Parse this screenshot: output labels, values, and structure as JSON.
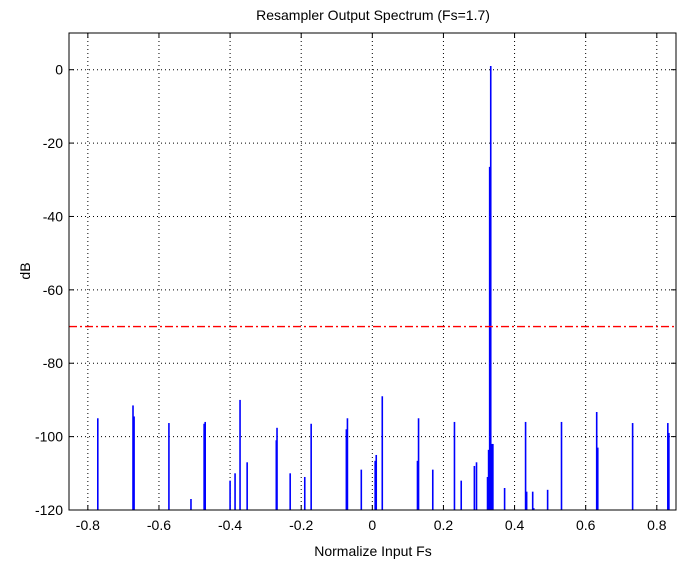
{
  "chart_data": {
    "type": "line",
    "style": "stem",
    "title": "Resampler Output Spectrum (Fs=1.7)",
    "xlabel": "Normalize Input Fs",
    "ylabel": "dB",
    "xlim": [
      -0.853,
      0.854
    ],
    "ylim": [
      -120,
      10
    ],
    "grid": true,
    "xticks": [
      -0.8,
      -0.6,
      -0.4,
      -0.2,
      0,
      0.2,
      0.4,
      0.6,
      0.8
    ],
    "xtick_labels": [
      "-0.8",
      "-0.6",
      "-0.4",
      "-0.2",
      "0",
      "0.2",
      "0.4",
      "0.6",
      "0.8"
    ],
    "yticks": [
      0,
      -20,
      -40,
      -60,
      -80,
      -100,
      -120
    ],
    "ytick_labels": [
      "0",
      "-20",
      "-40",
      "-60",
      "-80",
      "-100",
      "-120"
    ],
    "threshold": {
      "value": -70,
      "color": "#ff0000",
      "style": "dash-dot"
    },
    "series": [
      {
        "name": "spectrum",
        "color": "#0000ff",
        "x": [
          -0.772,
          -0.673,
          -0.67,
          -0.572,
          -0.51,
          -0.473,
          -0.47,
          -0.4,
          -0.386,
          -0.372,
          -0.352,
          -0.27,
          -0.268,
          -0.231,
          -0.19,
          -0.172,
          -0.073,
          -0.07,
          -0.031,
          0.008,
          0.011,
          0.028,
          0.127,
          0.13,
          0.17,
          0.231,
          0.25,
          0.287,
          0.293,
          0.324,
          0.327,
          0.33,
          0.333,
          0.336,
          0.339,
          0.372,
          0.431,
          0.434,
          0.451,
          0.454,
          0.493,
          0.532,
          0.631,
          0.634,
          0.732,
          0.831,
          0.834
        ],
        "y": [
          -95,
          -91.5,
          -94.5,
          -96.3,
          -117,
          -96.5,
          -96,
          -112,
          -110,
          -90,
          -107,
          -101,
          -97.6,
          -110,
          -111,
          -96.5,
          -98,
          -95,
          -109,
          -106.6,
          -105,
          -89,
          -106.6,
          -95,
          -109,
          -96,
          -112,
          -108,
          -107,
          -111,
          -103.6,
          -26.5,
          1,
          -102,
          -102,
          -114,
          -96,
          -115,
          -115,
          -119.5,
          -114.5,
          -96,
          -93.3,
          -103,
          -96.3,
          -96.3,
          -99
        ]
      }
    ]
  }
}
